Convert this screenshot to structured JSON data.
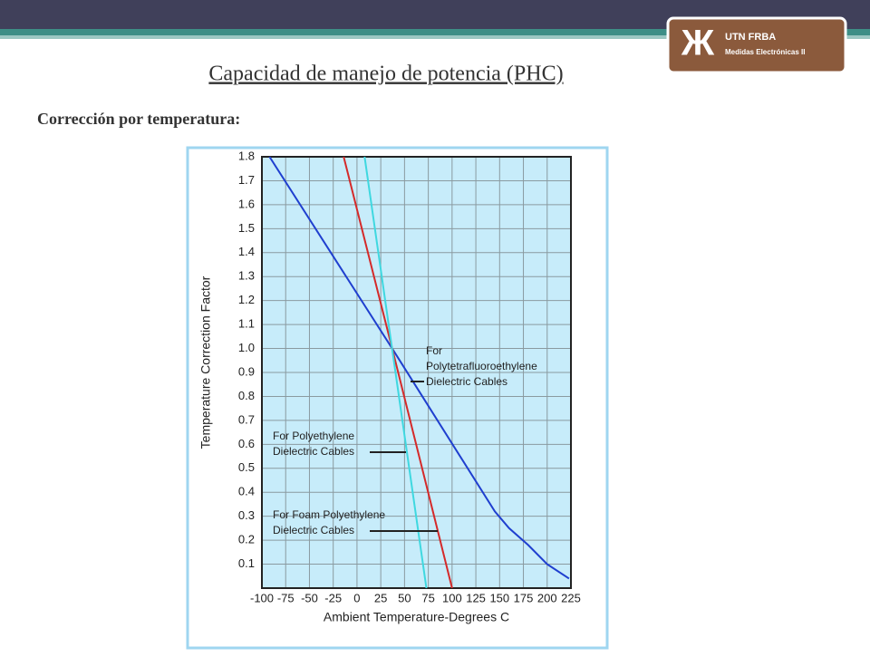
{
  "header": {
    "logo_title": "UTN FRBA",
    "logo_subtitle": "Medidas Electrónicas II"
  },
  "title": "Capacidad de manejo de potencia (PHC)",
  "subtitle": "Corrección por temperatura:",
  "chart_data": {
    "type": "line",
    "x_label": "Ambient Temperature-Degrees C",
    "y_label": "Temperature Correction Factor",
    "xlim": [
      -100,
      225
    ],
    "xticks": [
      -100,
      -75,
      -50,
      -25,
      0,
      25,
      50,
      75,
      100,
      125,
      150,
      175,
      200,
      225
    ],
    "ylim": [
      0,
      1.8
    ],
    "yticks": [
      0.1,
      0.2,
      0.3,
      0.4,
      0.5,
      0.6,
      0.7,
      0.8,
      0.9,
      {
        "value": 1,
        "label": "1.0"
      },
      1.1,
      1.2,
      1.3,
      1.4,
      1.5,
      1.6,
      1.7,
      1.8
    ],
    "grid": true,
    "series": [
      {
        "color": "#1f3fcf",
        "x": [
          -92,
          37,
          145,
          160,
          180,
          200,
          223
        ],
        "values": [
          1.8,
          1.0,
          0.32,
          0.25,
          0.18,
          0.1,
          0.04
        ]
      },
      {
        "color": "#d42a2a",
        "x": [
          -14,
          37,
          100
        ],
        "values": [
          1.8,
          1.0,
          0
        ]
      },
      {
        "color": "#3fd8e0",
        "x": [
          8,
          73
        ],
        "values": [
          1.8,
          0
        ]
      }
    ],
    "annotations": [
      {
        "lines": [
          "For",
          "Polytetrafluoroethylene",
          "Dielectric Cables"
        ]
      },
      {
        "lines": [
          "For Polyethylene",
          "Dielectric Cables"
        ]
      },
      {
        "lines": [
          "For Foam Polyethylene",
          "Dielectric Cables"
        ]
      }
    ]
  }
}
